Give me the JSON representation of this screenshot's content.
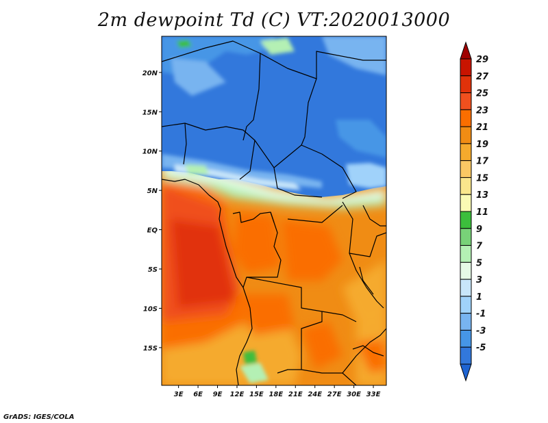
{
  "title": "2m dewpoint Td (C) VT:2020013000",
  "credit": "GrADS: IGES/COLA",
  "map": {
    "lat_labels": [
      {
        "label": "20N",
        "lat": 20
      },
      {
        "label": "15N",
        "lat": 15
      },
      {
        "label": "10N",
        "lat": 10
      },
      {
        "label": "5N",
        "lat": 5
      },
      {
        "label": "EQ",
        "lat": 0
      },
      {
        "label": "5S",
        "lat": -5
      },
      {
        "label": "10S",
        "lat": -10
      },
      {
        "label": "15S",
        "lat": -15
      }
    ],
    "lon_labels": [
      {
        "label": "3E",
        "lon": 3
      },
      {
        "label": "6E",
        "lon": 6
      },
      {
        "label": "9E",
        "lon": 9
      },
      {
        "label": "12E",
        "lon": 12
      },
      {
        "label": "15E",
        "lon": 15
      },
      {
        "label": "18E",
        "lon": 18
      },
      {
        "label": "21E",
        "lon": 21
      },
      {
        "label": "24E",
        "lon": 24
      },
      {
        "label": "27E",
        "lon": 27
      },
      {
        "label": "30E",
        "lon": 30
      },
      {
        "label": "33E",
        "lon": 33
      }
    ],
    "lon_range": [
      0.4,
      35.0
    ],
    "lat_range": [
      -19.8,
      24.6
    ]
  },
  "colorbar": {
    "labels": [
      "29",
      "27",
      "25",
      "23",
      "21",
      "19",
      "17",
      "15",
      "13",
      "11",
      "9",
      "7",
      "5",
      "3",
      "1",
      "-1",
      "-3",
      "-5"
    ],
    "colors": [
      "#a00000",
      "#c81400",
      "#e1320a",
      "#f0501e",
      "#fa6e00",
      "#f08c14",
      "#f5aa2d",
      "#fac864",
      "#fae68c",
      "#fafab4",
      "#3cbe3c",
      "#78d278",
      "#b4f0b4",
      "#e6fae6",
      "#c8e6fa",
      "#a0d2fa",
      "#78b4f0",
      "#4696e6",
      "#3278dc",
      "#1e64d2"
    ]
  }
}
